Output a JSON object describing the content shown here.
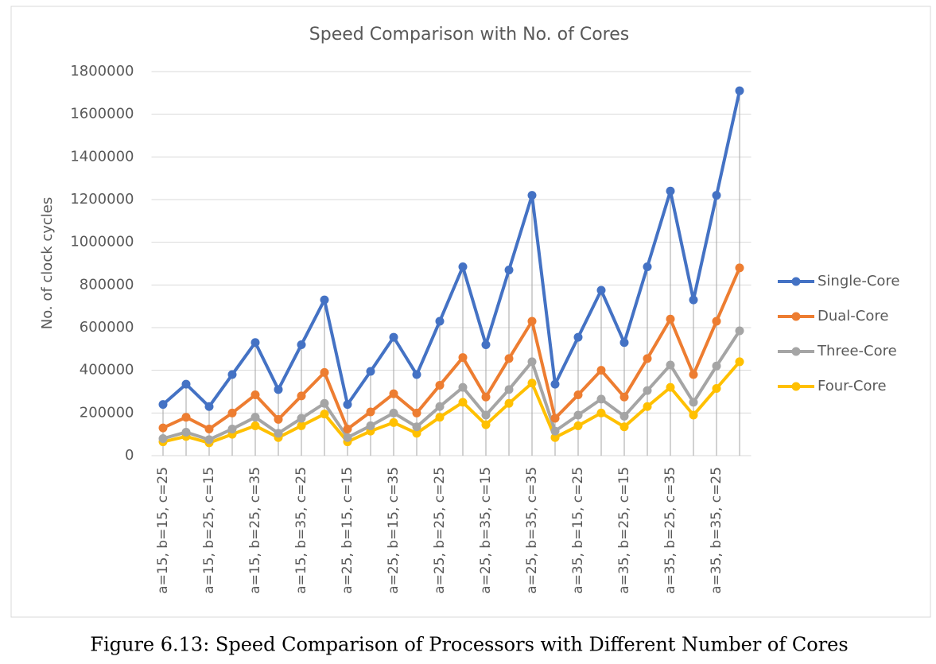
{
  "chart_data": {
    "type": "line",
    "title": "Speed Comparison with No. of Cores",
    "y_label": "No. of clock cycles",
    "caption": "Figure 6.13: Speed Comparison of Processors with Different Number of Cores",
    "categories": [
      "a=15, b=15, c=25",
      null,
      "a=15, b=25, c=15",
      null,
      "a=15, b=25, c=35",
      null,
      "a=15, b=35, c=25",
      null,
      "a=25, b=15, c=15",
      null,
      "a=25, b=15, c=35",
      null,
      "a=25, b=25, c=25",
      null,
      "a=25, b=35, c=15",
      null,
      "a=25, b=35, c=35",
      null,
      "a=35, b=15, c=25",
      null,
      "a=35, b=25, c=15",
      null,
      "a=35, b=25, c=35",
      null,
      "a=35, b=35, c=25",
      null
    ],
    "series": [
      {
        "name": "Single-Core",
        "color": "#4472c4",
        "values": [
          240000,
          335000,
          230000,
          380000,
          530000,
          310000,
          520000,
          730000,
          240000,
          395000,
          555000,
          380000,
          630000,
          885000,
          520000,
          870000,
          1220000,
          335000,
          555000,
          775000,
          530000,
          885000,
          1240000,
          730000,
          1220000,
          1710000
        ]
      },
      {
        "name": "Dual-Core",
        "color": "#ed7d31",
        "values": [
          130000,
          180000,
          125000,
          200000,
          285000,
          170000,
          280000,
          390000,
          125000,
          205000,
          290000,
          200000,
          330000,
          460000,
          275000,
          455000,
          630000,
          175000,
          285000,
          400000,
          275000,
          455000,
          640000,
          380000,
          630000,
          880000
        ]
      },
      {
        "name": "Three-Core",
        "color": "#a5a5a5",
        "values": [
          80000,
          110000,
          75000,
          125000,
          180000,
          105000,
          175000,
          245000,
          85000,
          140000,
          200000,
          135000,
          230000,
          320000,
          190000,
          310000,
          440000,
          115000,
          190000,
          265000,
          185000,
          305000,
          425000,
          250000,
          420000,
          585000
        ]
      },
      {
        "name": "Four-Core",
        "color": "#ffc000",
        "values": [
          65000,
          90000,
          60000,
          100000,
          140000,
          85000,
          140000,
          195000,
          65000,
          115000,
          155000,
          105000,
          180000,
          250000,
          145000,
          245000,
          340000,
          85000,
          140000,
          200000,
          135000,
          230000,
          320000,
          190000,
          315000,
          440000
        ]
      }
    ],
    "ylim": [
      0,
      1800000
    ],
    "yticks": [
      0,
      200000,
      400000,
      600000,
      800000,
      1000000,
      1200000,
      1400000,
      1600000,
      1800000
    ],
    "grid": true,
    "legend": "right",
    "drop_lines": true
  }
}
